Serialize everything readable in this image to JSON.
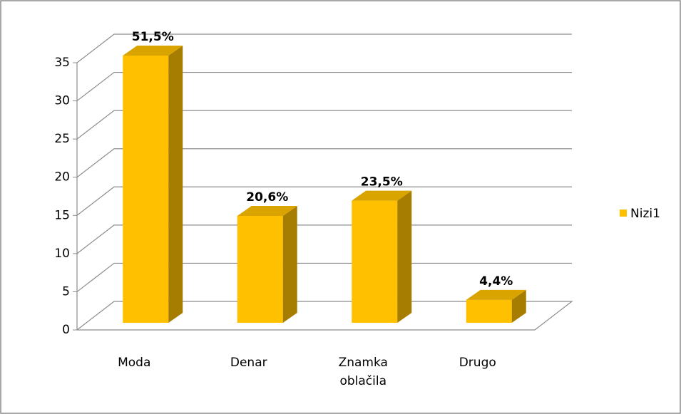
{
  "chart_data": {
    "type": "bar3d",
    "categories": [
      "Moda",
      "Denar",
      "Znamka oblačila",
      "Drugo"
    ],
    "values": [
      35,
      14,
      16,
      3
    ],
    "data_labels": [
      "51,5%",
      "20,6%",
      "23,5%",
      "4,4%"
    ],
    "series_name": "Nizi1",
    "color": "#FFC000",
    "ylim": [
      0,
      35
    ],
    "yticks": [
      0,
      5,
      10,
      15,
      20,
      25,
      30,
      35
    ],
    "grid": true,
    "legend": "right"
  }
}
